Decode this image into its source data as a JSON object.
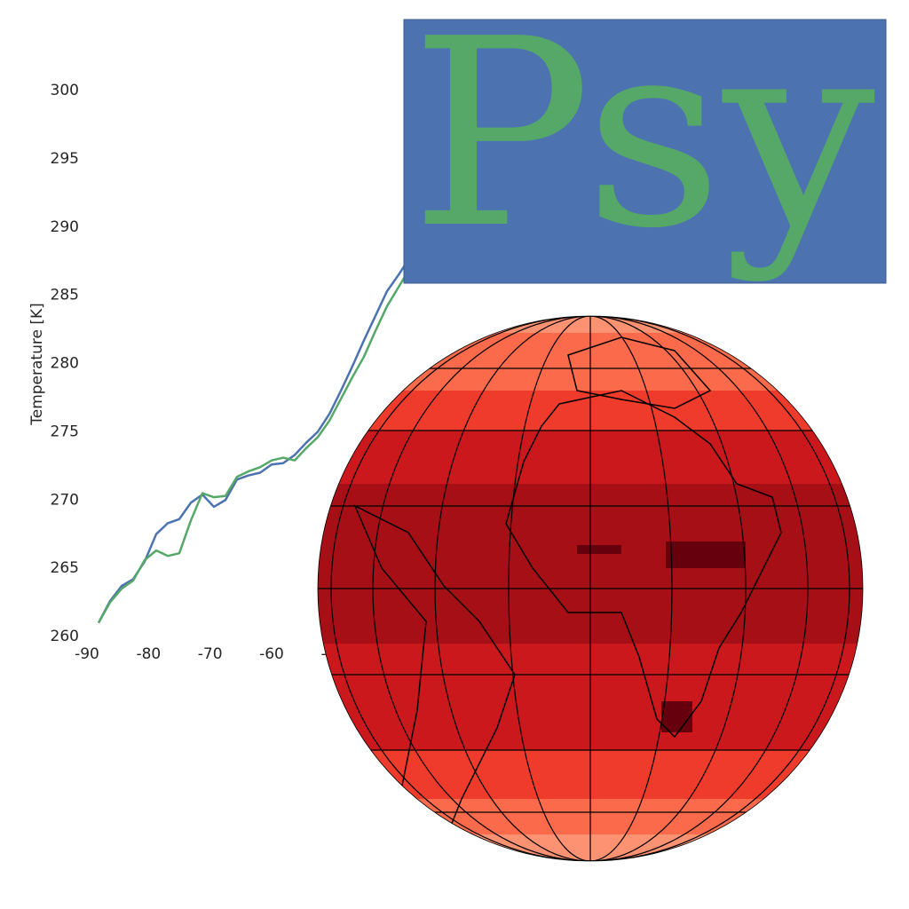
{
  "chart_data": {
    "type": "line",
    "y_label": "Temperature [K]",
    "x": [
      -88.125,
      -86.25,
      -84.375,
      -82.5,
      -80.625,
      -78.75,
      -76.875,
      -75,
      -73.125,
      -71.25,
      -69.375,
      -67.5,
      -65.625,
      -63.75,
      -61.875,
      -60,
      -58.125,
      -56.25,
      -54.375,
      -52.5,
      -50.625,
      -48.75,
      -46.875,
      -45,
      -43.125,
      -41.25,
      -39.375,
      -37.5
    ],
    "series": [
      {
        "color": "#4c72b0",
        "values": [
          261.0,
          262.6,
          263.7,
          264.2,
          265.5,
          267.5,
          268.3,
          268.6,
          269.8,
          270.4,
          269.5,
          270.0,
          271.5,
          271.8,
          272.0,
          272.6,
          272.7,
          273.3,
          274.2,
          275.0,
          276.3,
          278.0,
          279.8,
          281.7,
          283.5,
          285.3,
          286.5,
          287.8
        ]
      },
      {
        "color": "#55a868",
        "values": [
          261.0,
          262.5,
          263.5,
          264.1,
          265.6,
          266.3,
          265.9,
          266.1,
          268.5,
          270.5,
          270.2,
          270.3,
          271.7,
          272.1,
          272.4,
          272.9,
          273.1,
          272.9,
          273.8,
          274.6,
          275.8,
          277.4,
          279.0,
          280.5,
          282.4,
          284.2,
          285.6,
          287.0
        ]
      }
    ],
    "xlim": [
      -90,
      90
    ],
    "ylim": [
      260,
      300
    ],
    "xticks": [
      -90,
      -80,
      -70,
      -60,
      -50
    ],
    "yticks": [
      260,
      265,
      270,
      275,
      280,
      285,
      290,
      295,
      300
    ],
    "grid": false
  },
  "logo": {
    "text": "Psy"
  }
}
